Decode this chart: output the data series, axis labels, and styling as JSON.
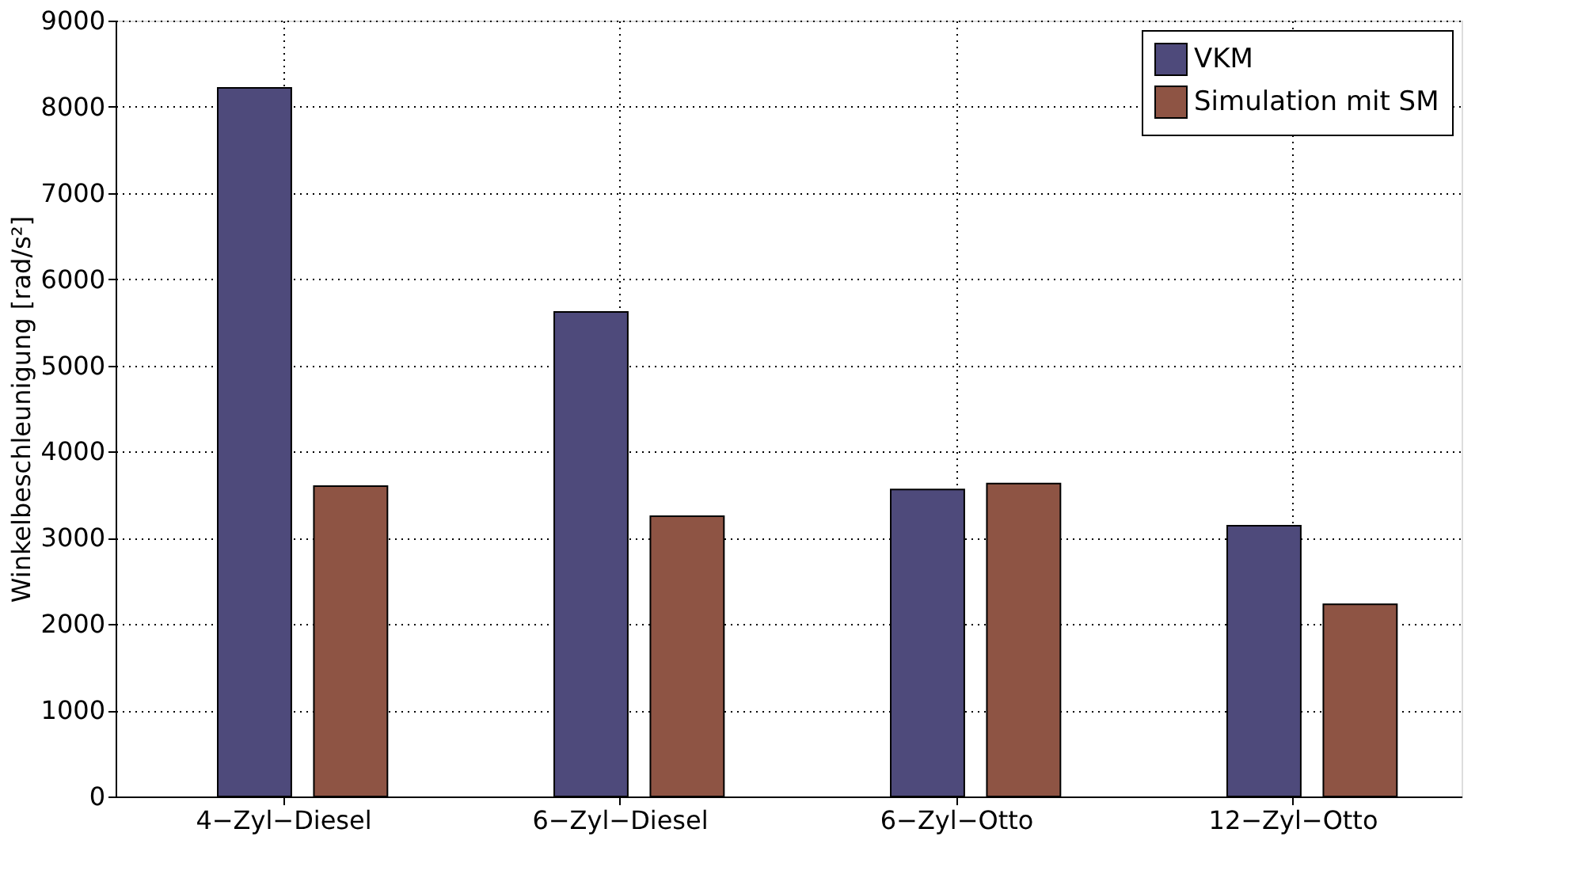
{
  "chart_data": {
    "type": "bar",
    "ylabel": "Winkelbeschleunigung [rad/s²]",
    "categories": [
      "4−Zyl−Diesel",
      "6−Zyl−Diesel",
      "6−Zyl−Otto",
      "12−Zyl−Otto"
    ],
    "series": [
      {
        "name": "VKM",
        "color": "#4e4a7b",
        "values": [
          8220,
          5620,
          3560,
          3140
        ]
      },
      {
        "name": "Simulation mit SM",
        "color": "#8e5444",
        "values": [
          3600,
          3250,
          3630,
          2230
        ]
      }
    ],
    "ylim": [
      0,
      9000
    ],
    "yticks": [
      0,
      1000,
      2000,
      3000,
      4000,
      5000,
      6000,
      7000,
      8000,
      9000
    ],
    "grid": true,
    "legend": "top right"
  }
}
